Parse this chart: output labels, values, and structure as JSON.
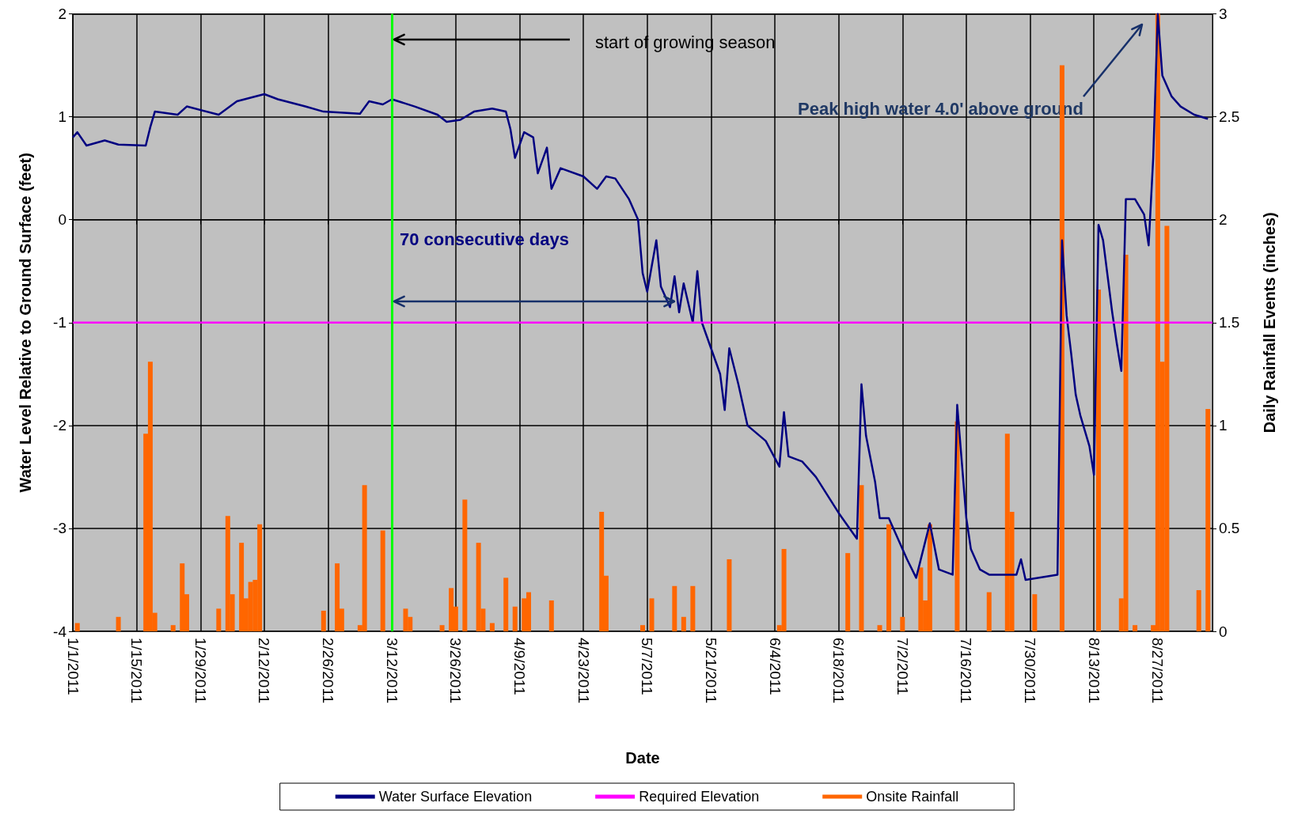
{
  "chart_data": {
    "type": "line",
    "xlabel": "Date",
    "ylabel": "Water Level Relative to Ground Surface (feet)",
    "y2label": "Daily Rainfall Events (inches)",
    "xlim": [
      "2011-01-01",
      "2011-09-08"
    ],
    "xticks": [
      {
        "value": "2011-01-01",
        "label": "1/1/2011"
      },
      {
        "value": "2011-01-15",
        "label": "1/15/2011"
      },
      {
        "value": "2011-01-29",
        "label": "1/29/2011"
      },
      {
        "value": "2011-02-12",
        "label": "2/12/2011"
      },
      {
        "value": "2011-02-26",
        "label": "2/26/2011"
      },
      {
        "value": "2011-03-12",
        "label": "3/12/2011"
      },
      {
        "value": "2011-03-26",
        "label": "3/26/2011"
      },
      {
        "value": "2011-04-09",
        "label": "4/9/2011"
      },
      {
        "value": "2011-04-23",
        "label": "4/23/2011"
      },
      {
        "value": "2011-05-07",
        "label": "5/7/2011"
      },
      {
        "value": "2011-05-21",
        "label": "5/21/2011"
      },
      {
        "value": "2011-06-04",
        "label": "6/4/2011"
      },
      {
        "value": "2011-06-18",
        "label": "6/18/2011"
      },
      {
        "value": "2011-07-02",
        "label": "7/2/2011"
      },
      {
        "value": "2011-07-16",
        "label": "7/16/2011"
      },
      {
        "value": "2011-07-30",
        "label": "7/30/2011"
      },
      {
        "value": "2011-08-13",
        "label": "8/13/2011"
      },
      {
        "value": "2011-08-27",
        "label": "8/27/2011"
      }
    ],
    "ylim": [
      -4,
      2
    ],
    "yticks": [
      -4,
      -3,
      -2,
      -1,
      0,
      1,
      2
    ],
    "y2lim": [
      0,
      3
    ],
    "y2ticks": [
      0,
      0.5,
      1,
      1.5,
      2,
      2.5,
      3
    ],
    "grid": true,
    "legend": "bottom",
    "ref_lines": [
      {
        "axis": "x",
        "value": "2011-03-12",
        "color": "#00ff00"
      }
    ],
    "annotations": [
      "start of growing season",
      "70 consecutive days",
      "Peak high water 4.0' above ground"
    ],
    "series": [
      {
        "name": "Water Surface Elevation",
        "color": "#000080",
        "x": [
          "2011-01-01",
          "2011-01-02",
          "2011-01-04",
          "2011-01-08",
          "2011-01-11",
          "2011-01-17",
          "2011-01-18",
          "2011-01-19",
          "2011-01-24",
          "2011-01-26",
          "2011-02-02",
          "2011-02-06",
          "2011-02-12",
          "2011-02-15",
          "2011-02-21",
          "2011-02-25",
          "2011-03-05",
          "2011-03-07",
          "2011-03-10",
          "2011-03-12",
          "2011-03-17",
          "2011-03-22",
          "2011-03-24",
          "2011-03-27",
          "2011-03-30",
          "2011-04-03",
          "2011-04-06",
          "2011-04-07",
          "2011-04-08",
          "2011-04-10",
          "2011-04-12",
          "2011-04-13",
          "2011-04-15",
          "2011-04-16",
          "2011-04-18",
          "2011-04-23",
          "2011-04-26",
          "2011-04-28",
          "2011-04-30",
          "2011-05-03",
          "2011-05-05",
          "2011-05-06",
          "2011-05-07",
          "2011-05-09",
          "2011-05-10",
          "2011-05-12",
          "2011-05-13",
          "2011-05-14",
          "2011-05-15",
          "2011-05-17",
          "2011-05-18",
          "2011-05-19",
          "2011-05-21",
          "2011-05-23",
          "2011-05-24",
          "2011-05-25",
          "2011-05-27",
          "2011-05-29",
          "2011-06-02",
          "2011-06-05",
          "2011-06-06",
          "2011-06-07",
          "2011-06-10",
          "2011-06-13",
          "2011-06-18",
          "2011-06-22",
          "2011-06-23",
          "2011-06-24",
          "2011-06-26",
          "2011-06-27",
          "2011-06-29",
          "2011-07-01",
          "2011-07-03",
          "2011-07-05",
          "2011-07-08",
          "2011-07-10",
          "2011-07-13",
          "2011-07-14",
          "2011-07-16",
          "2011-07-17",
          "2011-07-19",
          "2011-07-21",
          "2011-07-27",
          "2011-07-28",
          "2011-07-29",
          "2011-08-05",
          "2011-08-06",
          "2011-08-07",
          "2011-08-08",
          "2011-08-09",
          "2011-08-10",
          "2011-08-12",
          "2011-08-13",
          "2011-08-14",
          "2011-08-15",
          "2011-08-17",
          "2011-08-18",
          "2011-08-19",
          "2011-08-20",
          "2011-08-22",
          "2011-08-24",
          "2011-08-25",
          "2011-08-26",
          "2011-08-27",
          "2011-08-28",
          "2011-08-30",
          "2011-09-01",
          "2011-09-04",
          "2011-09-07"
        ],
        "values": [
          0.8,
          0.85,
          0.72,
          0.77,
          0.73,
          0.72,
          0.9,
          1.05,
          1.02,
          1.1,
          1.02,
          1.15,
          1.22,
          1.17,
          1.1,
          1.05,
          1.03,
          1.15,
          1.12,
          1.17,
          1.1,
          1.02,
          0.95,
          0.97,
          1.05,
          1.08,
          1.05,
          0.88,
          0.6,
          0.85,
          0.8,
          0.45,
          0.7,
          0.3,
          0.5,
          0.42,
          0.3,
          0.42,
          0.4,
          0.2,
          0.0,
          -0.52,
          -0.7,
          -0.2,
          -0.65,
          -0.85,
          -0.55,
          -0.9,
          -0.62,
          -1.0,
          -0.5,
          -1.0,
          -1.25,
          -1.5,
          -1.85,
          -1.25,
          -1.6,
          -2.0,
          -2.15,
          -2.4,
          -1.87,
          -2.3,
          -2.35,
          -2.5,
          -2.85,
          -3.1,
          -1.6,
          -2.1,
          -2.55,
          -2.9,
          -2.9,
          -3.1,
          -3.3,
          -3.48,
          -2.95,
          -3.4,
          -3.45,
          -1.8,
          -2.9,
          -3.2,
          -3.4,
          -3.45,
          -3.45,
          -3.3,
          -3.5,
          -3.45,
          -0.2,
          -0.93,
          -1.3,
          -1.7,
          -1.9,
          -2.2,
          -2.48,
          -0.05,
          -0.2,
          -0.9,
          -1.2,
          -1.47,
          0.2,
          0.2,
          0.05,
          -0.25,
          0.6,
          2.0,
          1.4,
          1.2,
          1.1,
          1.02,
          0.98
        ]
      },
      {
        "name": "Required Elevation",
        "color": "#ff00ff",
        "x": [
          "2011-01-01",
          "2011-09-08"
        ],
        "values": [
          -1,
          -1
        ]
      },
      {
        "name": "Onsite Rainfall",
        "type": "bar",
        "axis": "y2",
        "color": "#ff6600",
        "x": [
          "2011-01-02",
          "2011-01-11",
          "2011-01-17",
          "2011-01-18",
          "2011-01-19",
          "2011-01-23",
          "2011-01-25",
          "2011-01-26",
          "2011-02-02",
          "2011-02-04",
          "2011-02-05",
          "2011-02-07",
          "2011-02-08",
          "2011-02-09",
          "2011-02-10",
          "2011-02-11",
          "2011-02-25",
          "2011-02-28",
          "2011-03-01",
          "2011-03-05",
          "2011-03-06",
          "2011-03-10",
          "2011-03-15",
          "2011-03-16",
          "2011-03-23",
          "2011-03-25",
          "2011-03-26",
          "2011-03-28",
          "2011-03-31",
          "2011-04-01",
          "2011-04-03",
          "2011-04-06",
          "2011-04-08",
          "2011-04-10",
          "2011-04-11",
          "2011-04-16",
          "2011-04-27",
          "2011-04-28",
          "2011-05-06",
          "2011-05-08",
          "2011-05-13",
          "2011-05-15",
          "2011-05-17",
          "2011-05-25",
          "2011-06-05",
          "2011-06-06",
          "2011-06-20",
          "2011-06-23",
          "2011-06-27",
          "2011-06-29",
          "2011-07-02",
          "2011-07-06",
          "2011-07-07",
          "2011-07-08",
          "2011-07-14",
          "2011-07-21",
          "2011-07-25",
          "2011-07-26",
          "2011-07-31",
          "2011-08-06",
          "2011-08-14",
          "2011-08-19",
          "2011-08-20",
          "2011-08-22",
          "2011-08-26",
          "2011-08-27",
          "2011-08-28",
          "2011-08-29",
          "2011-09-05",
          "2011-09-07"
        ],
        "values": [
          0.04,
          0.07,
          0.96,
          1.31,
          0.09,
          0.03,
          0.33,
          0.18,
          0.11,
          0.56,
          0.18,
          0.43,
          0.16,
          0.24,
          0.25,
          0.52,
          0.1,
          0.33,
          0.11,
          0.03,
          0.71,
          0.49,
          0.11,
          0.07,
          0.03,
          0.21,
          0.12,
          0.64,
          0.43,
          0.11,
          0.04,
          0.26,
          0.12,
          0.16,
          0.19,
          0.15,
          0.58,
          0.27,
          0.03,
          0.16,
          0.22,
          0.07,
          0.22,
          0.35,
          0.03,
          0.4,
          0.38,
          0.71,
          0.03,
          0.52,
          0.07,
          0.31,
          0.15,
          0.52,
          1.02,
          0.19,
          0.96,
          0.58,
          0.18,
          2.75,
          1.66,
          0.16,
          1.83,
          0.03,
          0.03,
          3.0,
          1.31,
          1.97,
          0.2,
          1.08
        ]
      }
    ]
  }
}
